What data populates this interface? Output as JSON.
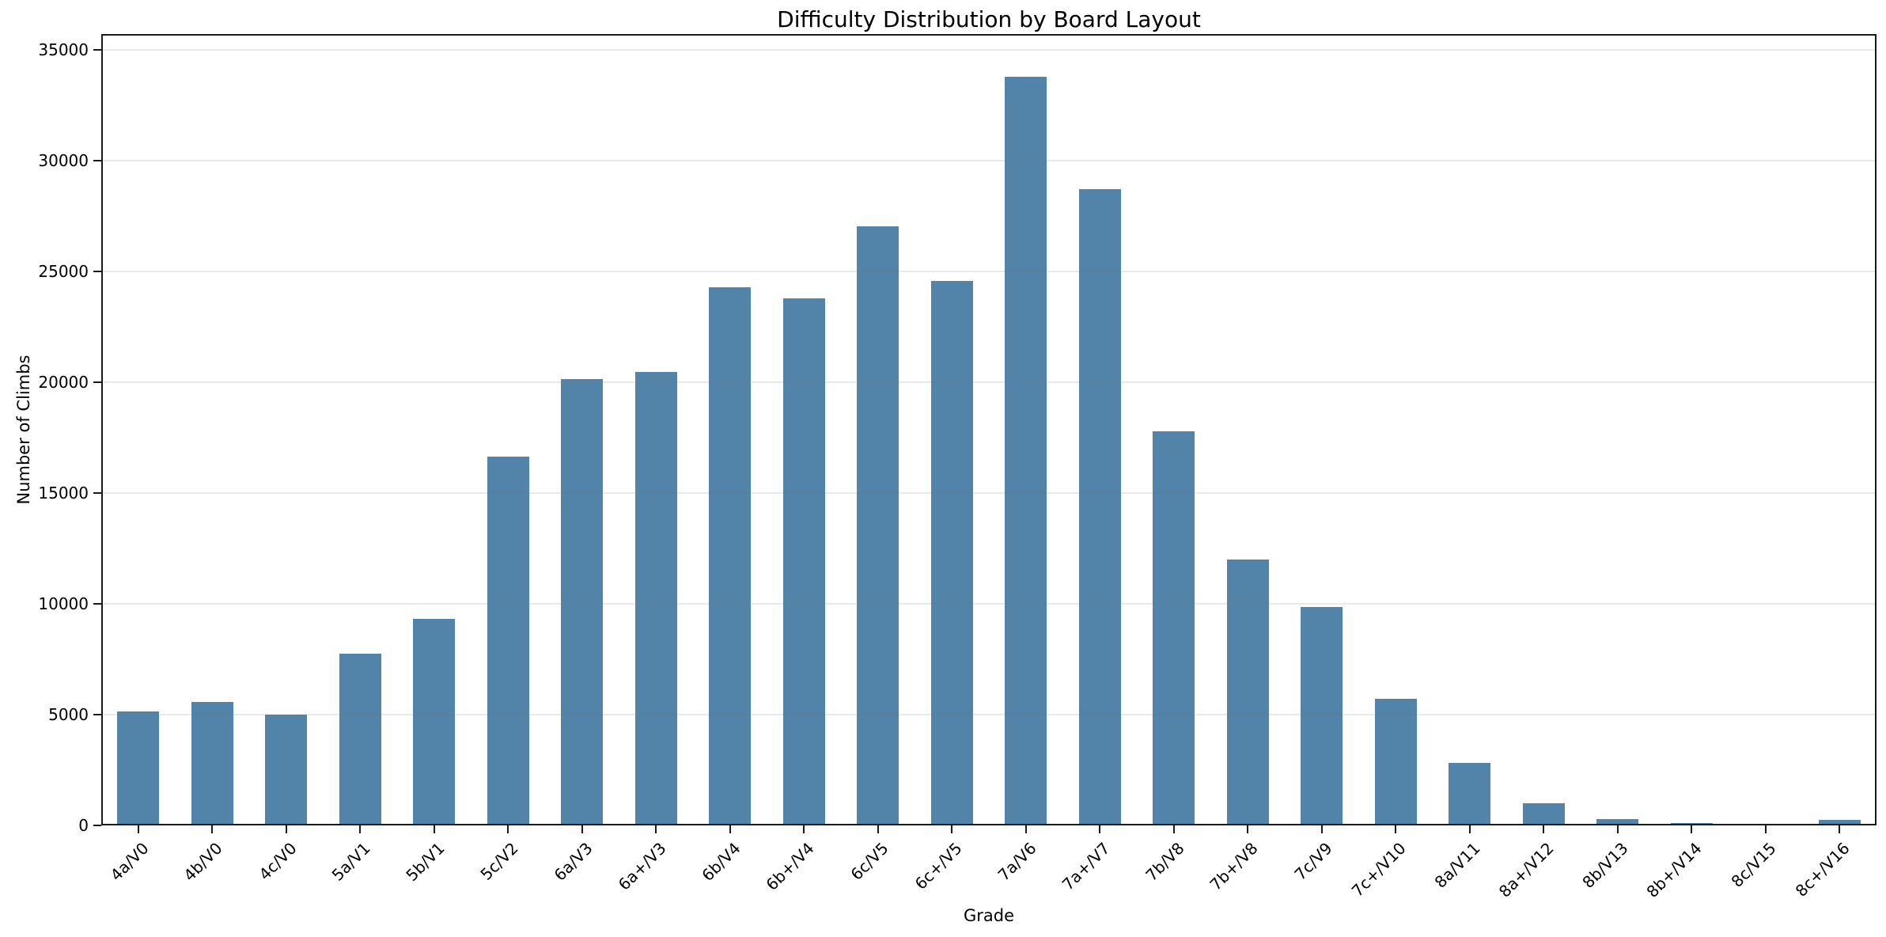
{
  "chart_data": {
    "type": "bar",
    "title": "Difficulty Distribution by Board Layout",
    "xlabel": "Grade",
    "ylabel": "Number of Climbs",
    "categories": [
      "4a/V0",
      "4b/V0",
      "4c/V0",
      "5a/V1",
      "5b/V1",
      "5c/V2",
      "6a/V3",
      "6a+/V3",
      "6b/V4",
      "6b+/V4",
      "6c/V5",
      "6c+/V5",
      "7a/V6",
      "7a+/V7",
      "7b/V8",
      "7b+/V8",
      "7c/V9",
      "7c+/V10",
      "8a/V11",
      "8a+/V12",
      "8b/V13",
      "8b+/V14",
      "8c/V15",
      "8c+/V16"
    ],
    "values": [
      5150,
      5575,
      5000,
      7760,
      9330,
      16650,
      20140,
      20450,
      24300,
      23780,
      27030,
      24570,
      33780,
      28730,
      17790,
      12000,
      9870,
      5710,
      2830,
      1000,
      280,
      90,
      80,
      240
    ],
    "yticks": [
      0,
      5000,
      10000,
      15000,
      20000,
      25000,
      30000,
      35000
    ],
    "ylim": [
      0,
      35714
    ],
    "grid": "horizontal-only, drawn faintly over bars",
    "legend": "none",
    "bar_color": "#5283a8",
    "axis_color": "#1a1a1a",
    "background": "#ffffff"
  }
}
